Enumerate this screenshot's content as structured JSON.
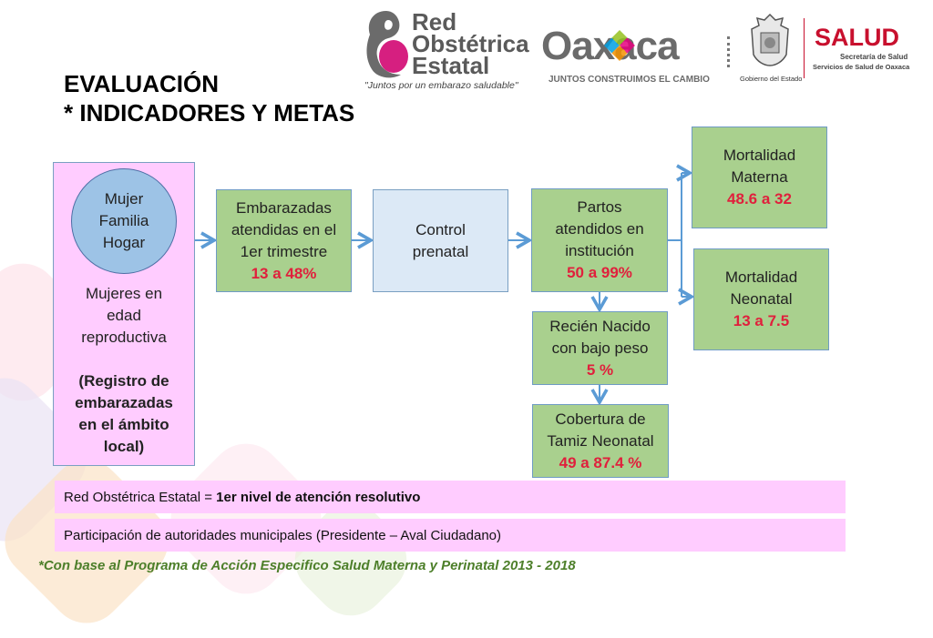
{
  "header": {
    "title_line1": "EVALUACIÓN",
    "title_line2": "* INDICADORES Y METAS"
  },
  "logos": {
    "red_obstetrica": {
      "line1": "Red",
      "line2": "Obstétrica",
      "line3": "Estatal",
      "slogan": "\"Juntos por un embarazo saludable\""
    },
    "oaxaca": {
      "name": "Oaxaca",
      "slogan": "JUNTOS CONSTRUIMOS EL CAMBIO"
    },
    "gobierno": {
      "label": "Gobierno del Estado"
    },
    "salud": {
      "name": "SALUD",
      "line1": "Secretaría de Salud",
      "line2": "Servicios de Salud de Oaxaca"
    }
  },
  "diagram": {
    "left_panel": {
      "circle_line1": "Mujer",
      "circle_line2": "Familia",
      "circle_line3": "Hogar",
      "text_line1": "Mujeres en",
      "text_line2": "edad",
      "text_line3": "reproductiva",
      "bold_line1": "(Registro de",
      "bold_line2": "embarazadas",
      "bold_line3": "en el ámbito",
      "bold_line4": "local)"
    },
    "embarazadas": {
      "line1": "Embarazadas",
      "line2": "atendidas en el",
      "line3": "1er trimestre",
      "metric": "13 a 48%"
    },
    "control": {
      "line1": "Control",
      "line2": "prenatal"
    },
    "partos": {
      "line1": "Partos",
      "line2": "atendidos en",
      "line3": "institución",
      "metric": "50 a 99%"
    },
    "mortalidad_materna": {
      "line1": "Mortalidad",
      "line2": "Materna",
      "metric": "48.6 a 32"
    },
    "mortalidad_neonatal": {
      "line1": "Mortalidad",
      "line2": "Neonatal",
      "metric": "13 a 7.5"
    },
    "recien_nacido": {
      "line1": "Recién Nacido",
      "line2": "con bajo peso",
      "metric": "5 %"
    },
    "cobertura": {
      "line1": "Cobertura de",
      "line2": "Tamiz Neonatal",
      "metric": "49 a 87.4 %"
    }
  },
  "bars": {
    "bar1_prefix": "Red Obstétrica Estatal = ",
    "bar1_bold": "1er nivel de atención resolutivo",
    "bar2": "Participación de autoridades municipales (Presidente – Aval Ciudadano)"
  },
  "footnote": "*Con base al Programa de Acción Especifico Salud Materna y Perinatal 2013 - 2018",
  "colors": {
    "green_box": "#a9d08e",
    "blue_box": "#dce9f6",
    "pink": "#ffccff",
    "metric_red": "#e0203c",
    "arrow_blue": "#5b9bd5",
    "salud_red": "#c8102e",
    "footnote_green": "#4d7f2a"
  }
}
